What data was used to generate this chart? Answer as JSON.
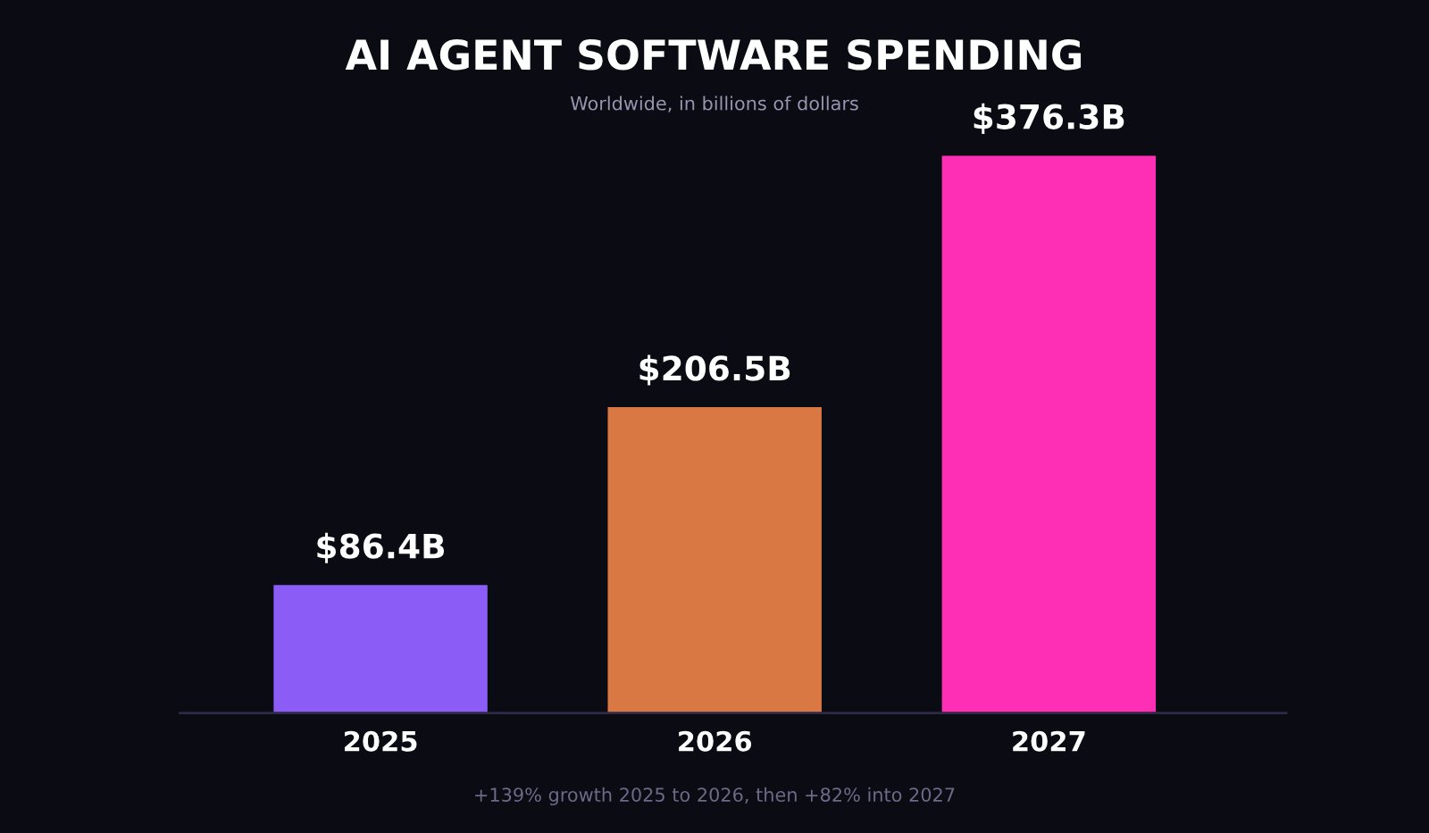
{
  "chart_data": {
    "type": "bar",
    "title": "AI AGENT SOFTWARE SPENDING",
    "subtitle": "Worldwide, in billions of dollars",
    "categories": [
      "2025",
      "2026",
      "2027"
    ],
    "values": [
      86.4,
      206.5,
      376.3
    ],
    "colors": [
      "#8b5cf6",
      "#d97843",
      "#ff2fb5"
    ],
    "value_labels": [
      "$86.4B",
      "$206.5B",
      "$376.3B"
    ],
    "annotations": [
      "+139% growth 2025 to 2026, then +82% into 2027"
    ]
  }
}
